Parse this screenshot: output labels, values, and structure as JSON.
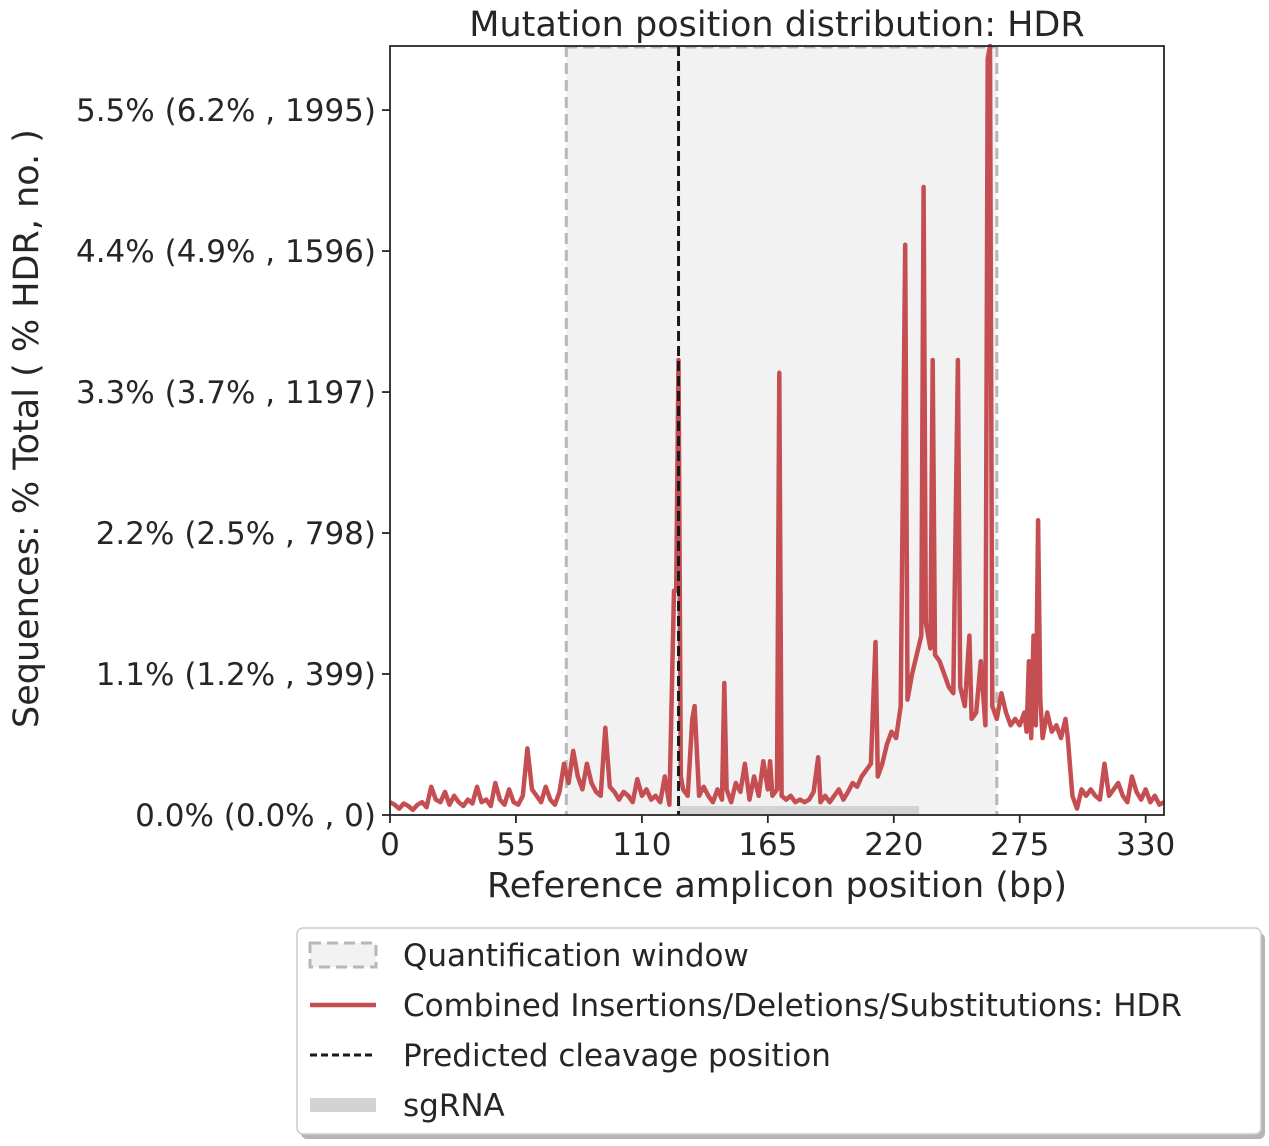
{
  "chart_data": {
    "type": "line",
    "title": "Mutation position distribution: HDR",
    "xlabel": "Reference amplicon position (bp)",
    "ylabel": "Sequences: % Total ( % HDR, no. )",
    "xlim": [
      0,
      338
    ],
    "ylim": [
      0,
      6.0
    ],
    "x_ticks": [
      0,
      55,
      110,
      165,
      220,
      275,
      330
    ],
    "x_tick_labels": [
      "0",
      "55",
      "110",
      "165",
      "220",
      "275",
      "330"
    ],
    "y_ticks": [
      0,
      1.1,
      2.2,
      3.3,
      4.4,
      5.5
    ],
    "y_tick_labels": [
      "0.0% (0.0% , 0)",
      "1.1% (1.2% , 399)",
      "2.2% (2.5% , 798)",
      "3.3% (3.7% , 1197)",
      "4.4% (4.9% , 1596)",
      "5.5% (6.2% , 1995)"
    ],
    "quantification_window": [
      77,
      265
    ],
    "cleavage_position": 126,
    "sgrna": [
      126,
      231
    ],
    "series": [
      {
        "name": "Combined Insertions/Deletions/Substitutions: HDR",
        "color": "#c44e52",
        "points": [
          [
            0,
            0.1
          ],
          [
            2,
            0.08
          ],
          [
            4,
            0.05
          ],
          [
            6,
            0.09
          ],
          [
            8,
            0.07
          ],
          [
            10,
            0.04
          ],
          [
            12,
            0.08
          ],
          [
            14,
            0.1
          ],
          [
            16,
            0.06
          ],
          [
            18,
            0.22
          ],
          [
            20,
            0.12
          ],
          [
            22,
            0.1
          ],
          [
            24,
            0.18
          ],
          [
            26,
            0.08
          ],
          [
            28,
            0.15
          ],
          [
            30,
            0.1
          ],
          [
            32,
            0.07
          ],
          [
            34,
            0.12
          ],
          [
            36,
            0.09
          ],
          [
            38,
            0.22
          ],
          [
            40,
            0.1
          ],
          [
            42,
            0.12
          ],
          [
            44,
            0.07
          ],
          [
            46,
            0.25
          ],
          [
            48,
            0.12
          ],
          [
            50,
            0.08
          ],
          [
            52,
            0.2
          ],
          [
            54,
            0.1
          ],
          [
            56,
            0.08
          ],
          [
            58,
            0.15
          ],
          [
            60,
            0.52
          ],
          [
            62,
            0.2
          ],
          [
            64,
            0.15
          ],
          [
            66,
            0.1
          ],
          [
            68,
            0.22
          ],
          [
            70,
            0.12
          ],
          [
            72,
            0.08
          ],
          [
            74,
            0.18
          ],
          [
            76,
            0.4
          ],
          [
            78,
            0.25
          ],
          [
            80,
            0.5
          ],
          [
            82,
            0.3
          ],
          [
            84,
            0.2
          ],
          [
            86,
            0.4
          ],
          [
            88,
            0.25
          ],
          [
            90,
            0.18
          ],
          [
            92,
            0.15
          ],
          [
            94,
            0.68
          ],
          [
            96,
            0.22
          ],
          [
            98,
            0.18
          ],
          [
            100,
            0.12
          ],
          [
            102,
            0.18
          ],
          [
            104,
            0.15
          ],
          [
            106,
            0.1
          ],
          [
            108,
            0.28
          ],
          [
            110,
            0.15
          ],
          [
            112,
            0.2
          ],
          [
            114,
            0.12
          ],
          [
            116,
            0.15
          ],
          [
            118,
            0.1
          ],
          [
            120,
            0.3
          ],
          [
            122,
            0.08
          ],
          [
            124,
            1.75
          ],
          [
            125,
            1.75
          ],
          [
            126,
            3.55
          ],
          [
            127,
            0.3
          ],
          [
            128,
            0.2
          ],
          [
            130,
            0.15
          ],
          [
            132,
            0.75
          ],
          [
            133,
            0.85
          ],
          [
            135,
            0.15
          ],
          [
            137,
            0.22
          ],
          [
            139,
            0.15
          ],
          [
            141,
            0.1
          ],
          [
            143,
            0.2
          ],
          [
            145,
            0.12
          ],
          [
            146,
            1.03
          ],
          [
            147,
            0.2
          ],
          [
            149,
            0.1
          ],
          [
            151,
            0.25
          ],
          [
            153,
            0.18
          ],
          [
            155,
            0.4
          ],
          [
            157,
            0.12
          ],
          [
            159,
            0.3
          ],
          [
            161,
            0.15
          ],
          [
            163,
            0.42
          ],
          [
            165,
            0.2
          ],
          [
            166,
            0.42
          ],
          [
            167,
            0.15
          ],
          [
            169,
            0.2
          ],
          [
            170,
            3.45
          ],
          [
            171,
            0.15
          ],
          [
            173,
            0.12
          ],
          [
            175,
            0.15
          ],
          [
            177,
            0.1
          ],
          [
            179,
            0.12
          ],
          [
            181,
            0.1
          ],
          [
            183,
            0.12
          ],
          [
            185,
            0.18
          ],
          [
            187,
            0.45
          ],
          [
            188,
            0.1
          ],
          [
            190,
            0.15
          ],
          [
            192,
            0.1
          ],
          [
            194,
            0.15
          ],
          [
            196,
            0.2
          ],
          [
            198,
            0.12
          ],
          [
            200,
            0.18
          ],
          [
            202,
            0.25
          ],
          [
            204,
            0.22
          ],
          [
            206,
            0.3
          ],
          [
            208,
            0.35
          ],
          [
            210,
            0.4
          ],
          [
            212,
            1.35
          ],
          [
            213,
            0.3
          ],
          [
            215,
            0.4
          ],
          [
            217,
            0.55
          ],
          [
            219,
            0.65
          ],
          [
            221,
            0.6
          ],
          [
            223,
            0.85
          ],
          [
            225,
            4.45
          ],
          [
            226,
            0.9
          ],
          [
            228,
            1.1
          ],
          [
            230,
            1.25
          ],
          [
            232,
            1.4
          ],
          [
            233,
            4.9
          ],
          [
            234,
            1.5
          ],
          [
            236,
            1.3
          ],
          [
            237,
            3.55
          ],
          [
            238,
            1.25
          ],
          [
            240,
            1.2
          ],
          [
            242,
            1.1
          ],
          [
            244,
            1.0
          ],
          [
            246,
            0.95
          ],
          [
            248,
            3.55
          ],
          [
            249,
            1.0
          ],
          [
            251,
            0.85
          ],
          [
            253,
            1.4
          ],
          [
            254,
            0.75
          ],
          [
            256,
            0.8
          ],
          [
            258,
            1.2
          ],
          [
            260,
            0.7
          ],
          [
            261,
            5.9
          ],
          [
            262,
            6.0
          ],
          [
            263,
            0.85
          ],
          [
            265,
            0.75
          ],
          [
            267,
            0.95
          ],
          [
            269,
            0.8
          ],
          [
            271,
            0.7
          ],
          [
            273,
            0.75
          ],
          [
            275,
            0.7
          ],
          [
            277,
            0.8
          ],
          [
            278,
            0.65
          ],
          [
            279,
            1.2
          ],
          [
            280,
            0.6
          ],
          [
            281,
            1.4
          ],
          [
            282,
            0.7
          ],
          [
            283,
            2.3
          ],
          [
            284,
            0.9
          ],
          [
            285,
            0.6
          ],
          [
            287,
            0.8
          ],
          [
            289,
            0.65
          ],
          [
            291,
            0.7
          ],
          [
            293,
            0.6
          ],
          [
            295,
            0.75
          ],
          [
            296,
            0.6
          ],
          [
            298,
            0.15
          ],
          [
            300,
            0.05
          ],
          [
            302,
            0.2
          ],
          [
            304,
            0.15
          ],
          [
            306,
            0.2
          ],
          [
            308,
            0.15
          ],
          [
            310,
            0.12
          ],
          [
            312,
            0.4
          ],
          [
            314,
            0.15
          ],
          [
            316,
            0.2
          ],
          [
            318,
            0.25
          ],
          [
            320,
            0.15
          ],
          [
            322,
            0.1
          ],
          [
            324,
            0.3
          ],
          [
            326,
            0.18
          ],
          [
            328,
            0.12
          ],
          [
            330,
            0.2
          ],
          [
            332,
            0.1
          ],
          [
            334,
            0.15
          ],
          [
            336,
            0.08
          ],
          [
            338,
            0.1
          ]
        ]
      }
    ],
    "legend": {
      "placement": "bottom",
      "entries": [
        "Quantification window",
        "Combined Insertions/Deletions/Substitutions: HDR",
        "Predicted cleavage position",
        "sgRNA"
      ]
    },
    "colors": {
      "line": "#c44e52",
      "window_fill": "#f2f2f2",
      "window_edge": "#b7b7b7",
      "cleavage": "#1a1a1a",
      "sgrna": "#d3d3d3"
    },
    "grid": false
  }
}
